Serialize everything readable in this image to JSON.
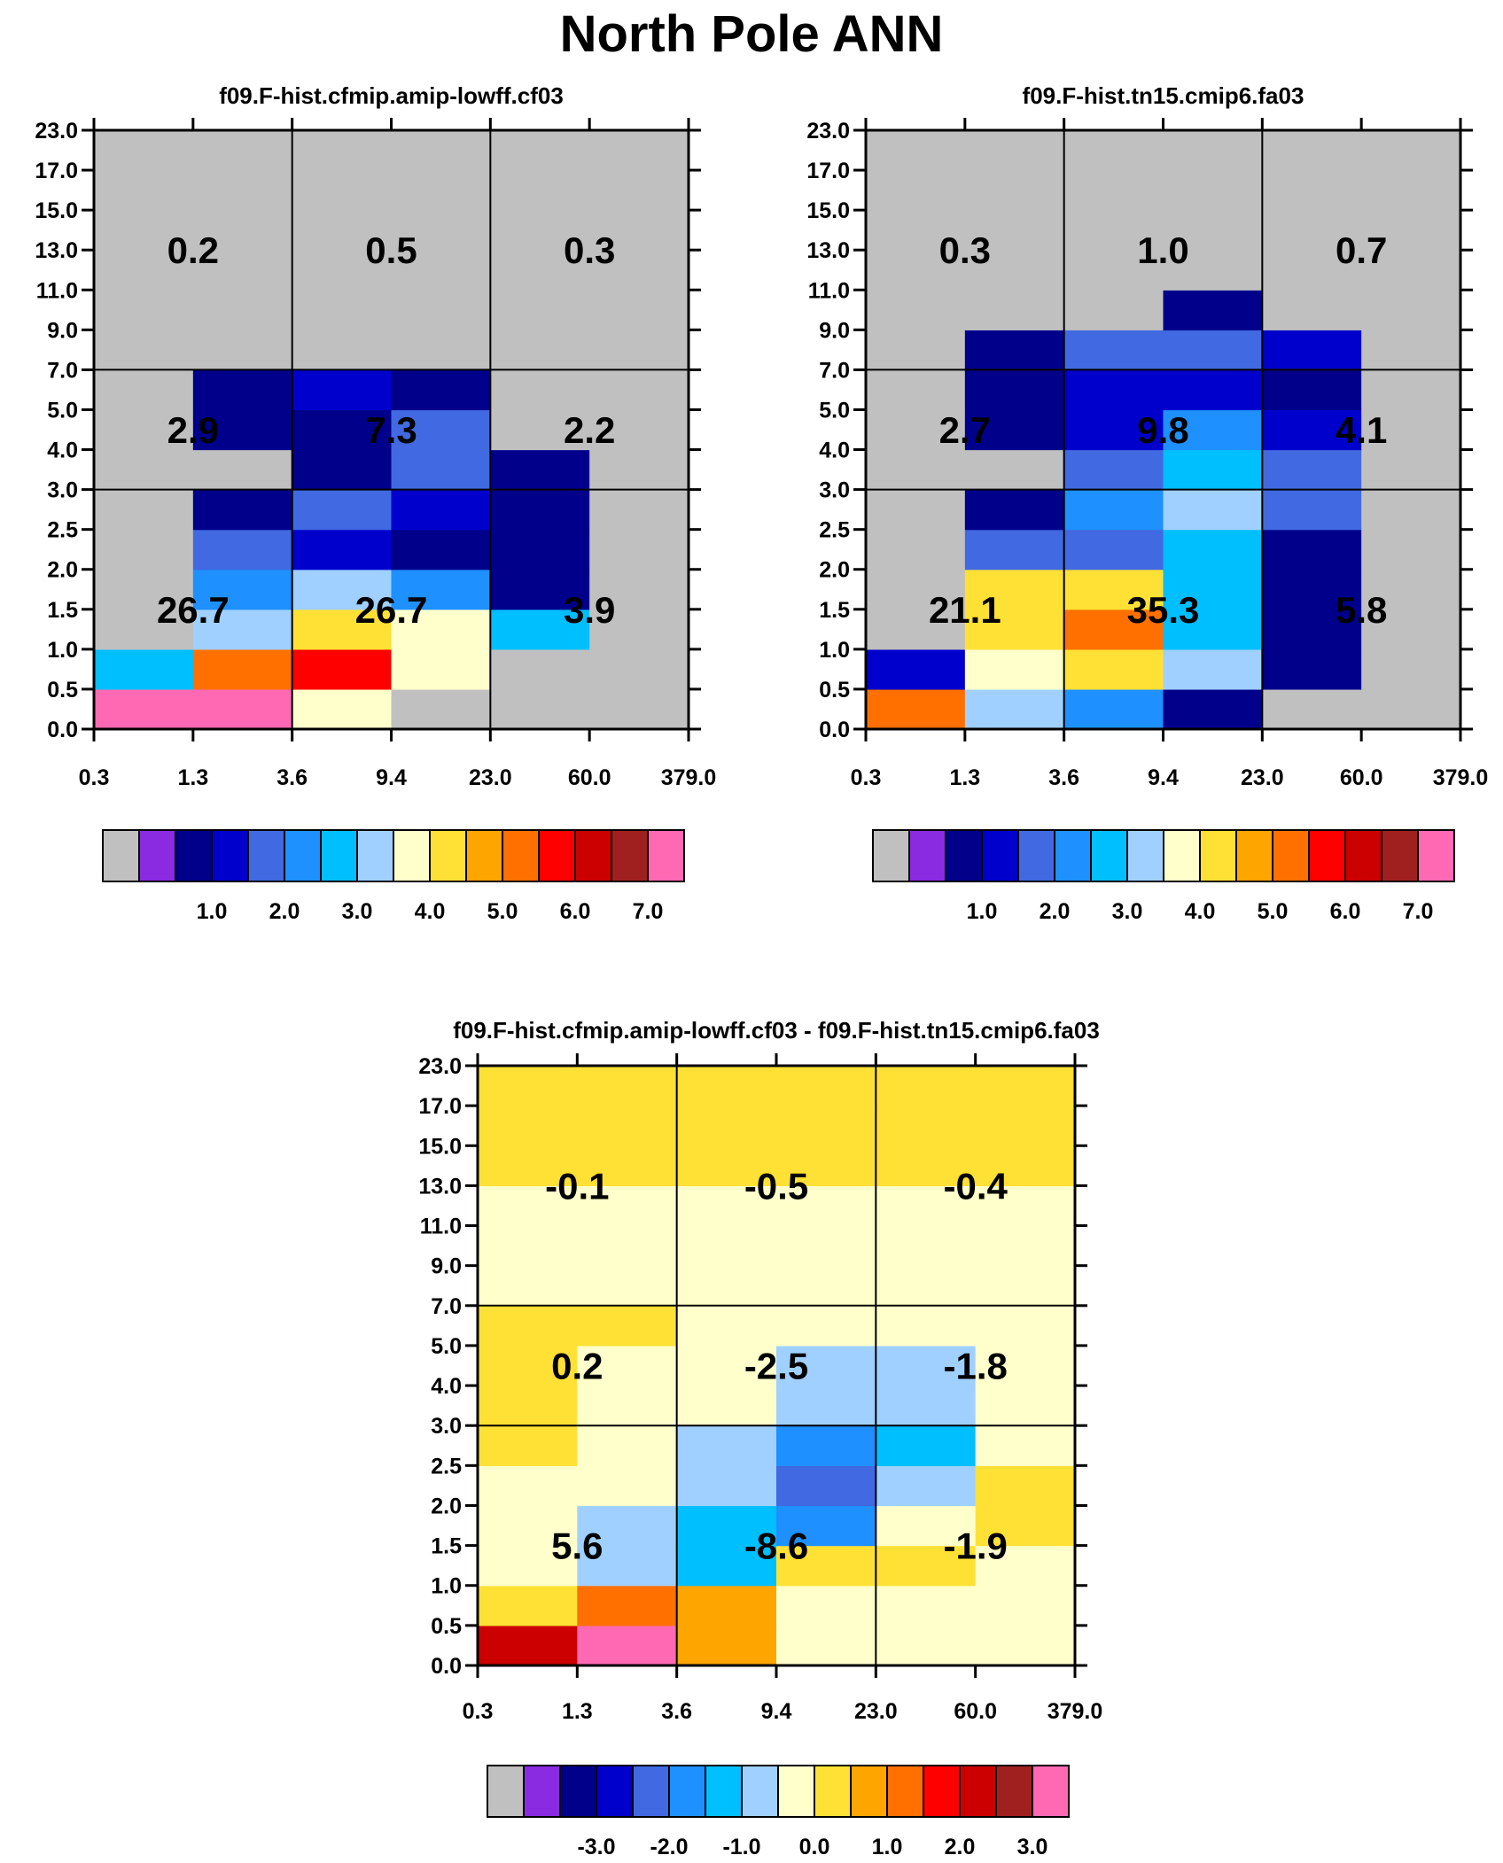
{
  "page": {
    "title": "North Pole ANN"
  },
  "chart_data": [
    {
      "type": "heatmap",
      "title": "f09.F-hist.cfmip.amip-lowff.cf03",
      "xlabel": "",
      "ylabel": "",
      "xticks": [
        "0.3",
        "1.3",
        "3.6",
        "9.4",
        "23.0",
        "60.0",
        "379.0"
      ],
      "yticks": [
        "0.0",
        "0.5",
        "1.0",
        "1.5",
        "2.0",
        "2.5",
        "3.0",
        "4.0",
        "5.0",
        "7.0",
        "9.0",
        "11.0",
        "13.0",
        "15.0",
        "17.0",
        "23.0"
      ],
      "x_bin_boundaries": [
        "0.3",
        "1.3",
        "3.6",
        "9.4",
        "23.0",
        "60.0",
        "379.0"
      ],
      "y_bin_boundaries": [
        "0.0",
        "0.5",
        "1.0",
        "1.5",
        "2.0",
        "2.5",
        "3.0",
        "4.0",
        "5.0",
        "7.0",
        "9.0",
        "11.0",
        "13.0",
        "15.0",
        "17.0",
        "23.0"
      ],
      "grid": [
        [
          8.0,
          7.1,
          3.7,
          0.0,
          0.0,
          0.0
        ],
        [
          2.5,
          5.2,
          5.7,
          3.5,
          0.0,
          0.0
        ],
        [
          0.0,
          3.3,
          4.3,
          3.5,
          2.5,
          0.0
        ],
        [
          0.0,
          2.2,
          3.3,
          2.3,
          0.5,
          0.0
        ],
        [
          0.0,
          1.8,
          1.3,
          0.8,
          0.5,
          0.0
        ],
        [
          0.0,
          0.5,
          1.8,
          1.2,
          0.5,
          0.0
        ],
        [
          0.0,
          0.0,
          0.5,
          1.8,
          0.5,
          0.0
        ],
        [
          0.0,
          0.5,
          0.5,
          1.8,
          0.0,
          0.0
        ],
        [
          0.0,
          0.5,
          1.2,
          0.5,
          0.0,
          0.0
        ],
        [
          0.0,
          0.0,
          0.0,
          0.0,
          0.0,
          0.0
        ],
        [
          0.0,
          0.0,
          0.0,
          0.0,
          0.0,
          0.0
        ],
        [
          0.0,
          0.0,
          0.0,
          0.0,
          0.0,
          0.0
        ],
        [
          0.0,
          0.0,
          0.0,
          0.0,
          0.0,
          0.0
        ],
        [
          0.0,
          0.0,
          0.0,
          0.0,
          0.0,
          0.0
        ],
        [
          0.0,
          0.0,
          0.0,
          0.0,
          0.0,
          0.0
        ]
      ],
      "group_labels": [
        [
          "26.7",
          "26.7",
          "3.9"
        ],
        [
          "2.9",
          "7.3",
          "2.2"
        ],
        [
          "0.2",
          "0.5",
          "0.3"
        ]
      ],
      "colorbar": {
        "colors": [
          "#c0c0c0",
          "#8a2be2",
          "#00008b",
          "#0000cd",
          "#4169e1",
          "#1e90ff",
          "#00bfff",
          "#a0d0ff",
          "#ffffcc",
          "#ffe135",
          "#ffa500",
          "#ff7000",
          "#ff0000",
          "#cc0000",
          "#a02020",
          "#ff69b4"
        ],
        "levels": [
          0.2,
          0.5,
          1.0,
          1.5,
          2.0,
          2.5,
          3.0,
          3.5,
          4.0,
          4.5,
          5.0,
          5.5,
          6.0,
          6.5,
          7.0
        ],
        "labels": [
          "1.0",
          "2.0",
          "3.0",
          "4.0",
          "5.0",
          "6.0",
          "7.0"
        ]
      }
    },
    {
      "type": "heatmap",
      "title": "f09.F-hist.tn15.cmip6.fa03",
      "xlabel": "",
      "ylabel": "",
      "xticks": [
        "0.3",
        "1.3",
        "3.6",
        "9.4",
        "23.0",
        "60.0",
        "379.0"
      ],
      "yticks": [
        "0.0",
        "0.5",
        "1.0",
        "1.5",
        "2.0",
        "2.5",
        "3.0",
        "4.0",
        "5.0",
        "7.0",
        "9.0",
        "11.0",
        "13.0",
        "15.0",
        "17.0",
        "23.0"
      ],
      "x_bin_boundaries": [
        "0.3",
        "1.3",
        "3.6",
        "9.4",
        "23.0",
        "60.0",
        "379.0"
      ],
      "y_bin_boundaries": [
        "0.0",
        "0.5",
        "1.0",
        "1.5",
        "2.0",
        "2.5",
        "3.0",
        "4.0",
        "5.0",
        "7.0",
        "9.0",
        "11.0",
        "13.0",
        "15.0",
        "17.0",
        "23.0"
      ],
      "grid": [
        [
          5.2,
          3.3,
          2.3,
          0.5,
          0.0,
          0.0
        ],
        [
          1.3,
          3.8,
          4.3,
          3.3,
          0.5,
          0.0
        ],
        [
          0.0,
          4.3,
          5.2,
          2.7,
          0.5,
          0.0
        ],
        [
          0.0,
          4.3,
          4.3,
          2.7,
          0.5,
          0.0
        ],
        [
          0.0,
          1.8,
          1.8,
          2.7,
          0.5,
          0.0
        ],
        [
          0.0,
          0.5,
          2.3,
          3.3,
          1.8,
          0.0
        ],
        [
          0.0,
          0.0,
          1.8,
          2.7,
          1.8,
          0.0
        ],
        [
          0.0,
          0.5,
          1.3,
          2.3,
          1.3,
          0.0
        ],
        [
          0.0,
          0.5,
          1.3,
          1.3,
          0.5,
          0.0
        ],
        [
          0.0,
          0.5,
          1.8,
          1.8,
          1.3,
          0.0
        ],
        [
          0.0,
          0.0,
          0.0,
          0.5,
          0.0,
          0.0
        ],
        [
          0.0,
          0.0,
          0.0,
          0.0,
          0.0,
          0.0
        ],
        [
          0.0,
          0.0,
          0.0,
          0.0,
          0.0,
          0.0
        ],
        [
          0.0,
          0.0,
          0.0,
          0.0,
          0.0,
          0.0
        ],
        [
          0.0,
          0.0,
          0.0,
          0.0,
          0.0,
          0.0
        ]
      ],
      "group_labels": [
        [
          "21.1",
          "35.3",
          "5.8"
        ],
        [
          "2.7",
          "9.8",
          "4.1"
        ],
        [
          "0.3",
          "1.0",
          "0.7"
        ]
      ],
      "colorbar": {
        "colors": [
          "#c0c0c0",
          "#8a2be2",
          "#00008b",
          "#0000cd",
          "#4169e1",
          "#1e90ff",
          "#00bfff",
          "#a0d0ff",
          "#ffffcc",
          "#ffe135",
          "#ffa500",
          "#ff7000",
          "#ff0000",
          "#cc0000",
          "#a02020",
          "#ff69b4"
        ],
        "levels": [
          0.2,
          0.5,
          1.0,
          1.5,
          2.0,
          2.5,
          3.0,
          3.5,
          4.0,
          4.5,
          5.0,
          5.5,
          6.0,
          6.5,
          7.0
        ],
        "labels": [
          "1.0",
          "2.0",
          "3.0",
          "4.0",
          "5.0",
          "6.0",
          "7.0"
        ]
      }
    },
    {
      "type": "heatmap",
      "title": "f09.F-hist.cfmip.amip-lowff.cf03 - f09.F-hist.tn15.cmip6.fa03",
      "xlabel": "",
      "ylabel": "",
      "xticks": [
        "0.3",
        "1.3",
        "3.6",
        "9.4",
        "23.0",
        "60.0",
        "379.0"
      ],
      "yticks": [
        "0.0",
        "0.5",
        "1.0",
        "1.5",
        "2.0",
        "2.5",
        "3.0",
        "4.0",
        "5.0",
        "7.0",
        "9.0",
        "11.0",
        "13.0",
        "15.0",
        "17.0",
        "23.0"
      ],
      "x_bin_boundaries": [
        "0.3",
        "1.3",
        "3.6",
        "9.4",
        "23.0",
        "60.0",
        "379.0"
      ],
      "y_bin_boundaries": [
        "0.0",
        "0.5",
        "1.0",
        "1.5",
        "2.0",
        "2.5",
        "3.0",
        "4.0",
        "5.0",
        "7.0",
        "9.0",
        "11.0",
        "13.0",
        "15.0",
        "17.0",
        "23.0"
      ],
      "grid": [
        [
          2.2,
          3.0,
          0.8,
          -0.2,
          -0.2,
          -0.2
        ],
        [
          0.3,
          1.3,
          0.8,
          -0.2,
          -0.2,
          -0.2
        ],
        [
          -0.2,
          -0.8,
          -1.3,
          0.3,
          0.3,
          -0.2
        ],
        [
          -0.2,
          -0.8,
          -1.3,
          -1.8,
          -0.2,
          0.3
        ],
        [
          -0.2,
          -0.2,
          -0.8,
          -2.2,
          -0.8,
          0.3
        ],
        [
          0.3,
          -0.2,
          -0.8,
          -1.7,
          -1.3,
          -0.2
        ],
        [
          0.3,
          -0.2,
          -0.2,
          -0.8,
          -0.8,
          -0.2
        ],
        [
          0.3,
          -0.2,
          -0.2,
          -0.8,
          -0.8,
          -0.2
        ],
        [
          0.3,
          0.3,
          -0.2,
          -0.2,
          -0.2,
          -0.2
        ],
        [
          -0.2,
          -0.2,
          -0.2,
          -0.2,
          -0.2,
          -0.2
        ],
        [
          -0.2,
          -0.2,
          -0.2,
          -0.2,
          -0.2,
          -0.2
        ],
        [
          -0.2,
          -0.2,
          -0.2,
          -0.2,
          -0.2,
          -0.2
        ],
        [
          0.3,
          0.3,
          0.3,
          0.3,
          0.3,
          0.3
        ],
        [
          0.3,
          0.3,
          0.3,
          0.3,
          0.3,
          0.3
        ],
        [
          0.3,
          0.3,
          0.3,
          0.3,
          0.3,
          0.3
        ]
      ],
      "group_labels": [
        [
          "5.6",
          "-8.6",
          "-1.9"
        ],
        [
          "0.2",
          "-2.5",
          "-1.8"
        ],
        [
          "-0.1",
          "-0.5",
          "-0.4"
        ]
      ],
      "colorbar": {
        "colors": [
          "#c0c0c0",
          "#8a2be2",
          "#00008b",
          "#0000cd",
          "#4169e1",
          "#1e90ff",
          "#00bfff",
          "#a0d0ff",
          "#ffffcc",
          "#ffe135",
          "#ffa500",
          "#ff7000",
          "#ff0000",
          "#cc0000",
          "#a02020",
          "#ff69b4"
        ],
        "levels": [
          -4.0,
          -3.5,
          -3.0,
          -2.5,
          -2.0,
          -1.5,
          -1.0,
          -0.5,
          0.0,
          0.5,
          1.0,
          1.5,
          2.0,
          2.5,
          3.0
        ],
        "labels": [
          "-3.0",
          "-2.0",
          "-1.0",
          "0.0",
          "1.0",
          "2.0",
          "3.0"
        ]
      }
    }
  ]
}
